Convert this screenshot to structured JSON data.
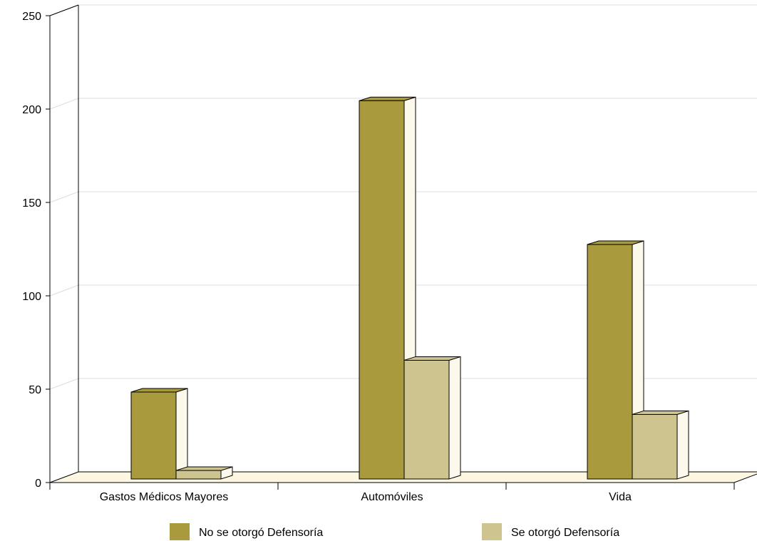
{
  "chart_data": {
    "type": "bar",
    "categories": [
      "Gastos Médicos Mayores",
      "Automóviles",
      "Vida"
    ],
    "series": [
      {
        "name": "No se otorgó Defensoría",
        "values": [
          50,
          206,
          129
        ]
      },
      {
        "name": "Se otorgó Defensoría",
        "values": [
          8,
          67,
          38
        ]
      }
    ],
    "ylim": [
      0,
      250
    ],
    "yticks": [
      0,
      50,
      100,
      150,
      200,
      250
    ],
    "grid": true,
    "legend_position": "bottom",
    "colors": {
      "series": [
        "#a99a3e",
        "#cdc48f"
      ],
      "side": "#fcf8ec",
      "floor": "#fdf6e0",
      "grid": "#dddddd",
      "axis": "#000000"
    }
  }
}
